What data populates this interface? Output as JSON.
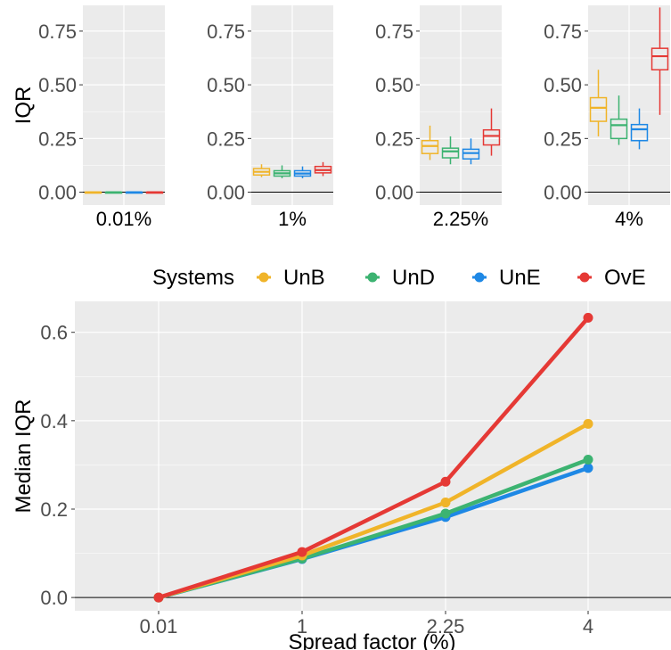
{
  "colors": {
    "UnB": "#F0B429",
    "UnD": "#3CB371",
    "UnE": "#1E88E5",
    "OvE": "#E53935",
    "panel_bg": "#EBEBEB",
    "grid": "#FFFFFF"
  },
  "chart_data": [
    {
      "type": "box",
      "ylabel": "IQR",
      "xlabel": "",
      "ylim": [
        -0.06,
        0.87
      ],
      "yticks": [
        "0.00",
        "0.25",
        "0.50",
        "0.75"
      ],
      "facets": [
        {
          "label": "0.01%",
          "boxes": [
            {
              "system": "UnB",
              "min": 0.0,
              "q1": 0.0,
              "median": 0.0,
              "q3": 0.0,
              "max": 0.0
            },
            {
              "system": "UnD",
              "min": 0.0,
              "q1": 0.0,
              "median": 0.0,
              "q3": 0.0,
              "max": 0.0
            },
            {
              "system": "UnE",
              "min": 0.0,
              "q1": 0.0,
              "median": 0.0,
              "q3": 0.0,
              "max": 0.0
            },
            {
              "system": "OvE",
              "min": 0.0,
              "q1": 0.0,
              "median": 0.0,
              "q3": 0.0,
              "max": 0.0
            }
          ]
        },
        {
          "label": "1%",
          "boxes": [
            {
              "system": "UnB",
              "min": 0.07,
              "q1": 0.08,
              "median": 0.095,
              "q3": 0.11,
              "max": 0.13
            },
            {
              "system": "UnD",
              "min": 0.065,
              "q1": 0.075,
              "median": 0.088,
              "q3": 0.1,
              "max": 0.125
            },
            {
              "system": "UnE",
              "min": 0.065,
              "q1": 0.075,
              "median": 0.087,
              "q3": 0.1,
              "max": 0.12
            },
            {
              "system": "OvE",
              "min": 0.075,
              "q1": 0.09,
              "median": 0.103,
              "q3": 0.12,
              "max": 0.14
            }
          ]
        },
        {
          "label": "2.25%",
          "boxes": [
            {
              "system": "UnB",
              "min": 0.15,
              "q1": 0.18,
              "median": 0.215,
              "q3": 0.24,
              "max": 0.31
            },
            {
              "system": "UnD",
              "min": 0.13,
              "q1": 0.16,
              "median": 0.19,
              "q3": 0.205,
              "max": 0.26
            },
            {
              "system": "UnE",
              "min": 0.13,
              "q1": 0.155,
              "median": 0.182,
              "q3": 0.2,
              "max": 0.25
            },
            {
              "system": "OvE",
              "min": 0.17,
              "q1": 0.22,
              "median": 0.262,
              "q3": 0.29,
              "max": 0.39
            }
          ]
        },
        {
          "label": "4%",
          "boxes": [
            {
              "system": "UnB",
              "min": 0.26,
              "q1": 0.33,
              "median": 0.393,
              "q3": 0.44,
              "max": 0.57
            },
            {
              "system": "UnD",
              "min": 0.22,
              "q1": 0.25,
              "median": 0.312,
              "q3": 0.34,
              "max": 0.45
            },
            {
              "system": "UnE",
              "min": 0.2,
              "q1": 0.24,
              "median": 0.293,
              "q3": 0.315,
              "max": 0.39
            },
            {
              "system": "OvE",
              "min": 0.36,
              "q1": 0.57,
              "median": 0.633,
              "q3": 0.67,
              "max": 0.86
            }
          ]
        }
      ]
    },
    {
      "type": "line",
      "legend_title": "Systems",
      "legend_position": "top",
      "xlabel": "Spread factor (%)",
      "ylabel": "Median IQR",
      "x": [
        "0.01",
        "1",
        "2.25",
        "4"
      ],
      "ylim": [
        -0.03,
        0.67
      ],
      "yticks": [
        "0.0",
        "0.2",
        "0.4",
        "0.6"
      ],
      "series": [
        {
          "name": "UnB",
          "values": [
            0.0,
            0.095,
            0.215,
            0.393
          ]
        },
        {
          "name": "UnD",
          "values": [
            0.0,
            0.088,
            0.19,
            0.312
          ]
        },
        {
          "name": "UnE",
          "values": [
            0.0,
            0.087,
            0.182,
            0.293
          ]
        },
        {
          "name": "OvE",
          "values": [
            0.0,
            0.103,
            0.262,
            0.633
          ]
        }
      ]
    }
  ]
}
